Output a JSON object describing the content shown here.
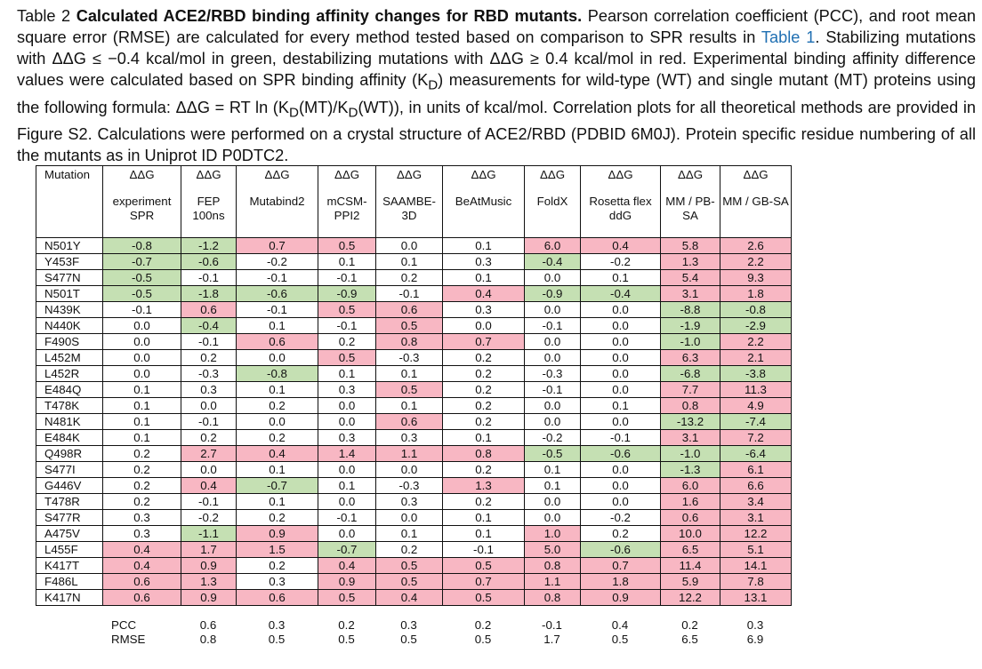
{
  "caption": {
    "label": "Table 2",
    "title": "Calculated ACE2/RBD binding affinity changes for RBD mutants.",
    "s1": "Pearson correlation coefficient (PCC), and root mean square error (RMSE) are calculated for every method tested based on comparison to SPR results in",
    "link": "Table 1",
    "s2": ". Stabilizing mutations with ΔΔG ≤ −0.4 kcal/mol in green, destabilizing mutations with ΔΔG ≥ 0.4 kcal/mol in red. Experimental binding affinity difference values were calculated based on SPR binding affinity (K",
    "sub1": "D",
    "s3": ") measurements for wild-type (WT) and single mutant (MT) proteins using the following formula: ΔΔG = RT ln (K",
    "sub2": "D",
    "s4": "(MT)/K",
    "sub3": "D",
    "s5": "(WT)), in units of kcal/mol. Correlation plots for all theoretical methods are provided in Figure S2. Calculations were performed on a crystal structure of ACE2/RBD (PDBID 6M0J). Protein specific residue numbering of all the mutants as in Uniprot ID P0DTC2."
  },
  "table": {
    "first_header": "Mutation",
    "symbol": "ΔΔG",
    "columns": [
      "experiment SPR",
      "FEP 100ns",
      "Mutabind2",
      "mCSM-PPI2",
      "SAAMBE-3D",
      "BeAtMusic",
      "FoldX",
      "Rosetta flex ddG",
      "MM / PB-SA",
      "MM / GB-SA"
    ],
    "rows": [
      {
        "m": "N501Y",
        "v": [
          "-0.8",
          "-1.2",
          "0.7",
          "0.5",
          "0.0",
          "0.1",
          "6.0",
          "0.4",
          "5.8",
          "2.6"
        ],
        "c": "ggrr--rrrr"
      },
      {
        "m": "Y453F",
        "v": [
          "-0.7",
          "-0.6",
          "-0.2",
          "0.1",
          "0.1",
          "0.3",
          "-0.4",
          "-0.2",
          "1.3",
          "2.2"
        ],
        "c": "gg----g-rr"
      },
      {
        "m": "S477N",
        "v": [
          "-0.5",
          "-0.1",
          "-0.1",
          "-0.1",
          "0.2",
          "0.1",
          "0.0",
          "0.1",
          "5.4",
          "9.3"
        ],
        "c": "g-------rr"
      },
      {
        "m": "N501T",
        "v": [
          "-0.5",
          "-1.8",
          "-0.6",
          "-0.9",
          "-0.1",
          "0.4",
          "-0.9",
          "-0.4",
          "3.1",
          "1.8"
        ],
        "c": "gggg-rggrr"
      },
      {
        "m": "N439K",
        "v": [
          "-0.1",
          "0.6",
          "-0.1",
          "0.5",
          "0.6",
          "0.3",
          "0.0",
          "0.0",
          "-8.8",
          "-0.8"
        ],
        "c": "-r-rr---gg"
      },
      {
        "m": "N440K",
        "v": [
          "0.0",
          "-0.4",
          "0.1",
          "-0.1",
          "0.5",
          "0.0",
          "-0.1",
          "0.0",
          "-1.9",
          "-2.9"
        ],
        "c": "-g--r---gg"
      },
      {
        "m": "F490S",
        "v": [
          "0.0",
          "-0.1",
          "0.6",
          "0.2",
          "0.8",
          "0.7",
          "0.0",
          "0.0",
          "-1.0",
          "2.2"
        ],
        "c": "--r-rr--gr"
      },
      {
        "m": "L452M",
        "v": [
          "0.0",
          "0.2",
          "0.0",
          "0.5",
          "-0.3",
          "0.2",
          "0.0",
          "0.0",
          "6.3",
          "2.1"
        ],
        "c": "---r----rr"
      },
      {
        "m": "L452R",
        "v": [
          "0.0",
          "-0.3",
          "-0.8",
          "0.1",
          "0.1",
          "0.2",
          "-0.3",
          "0.0",
          "-6.8",
          "-3.8"
        ],
        "c": "--g-----gg"
      },
      {
        "m": "E484Q",
        "v": [
          "0.1",
          "0.3",
          "0.1",
          "0.3",
          "0.5",
          "0.2",
          "-0.1",
          "0.0",
          "7.7",
          "11.3"
        ],
        "c": "----r---rr"
      },
      {
        "m": "T478K",
        "v": [
          "0.1",
          "0.0",
          "0.2",
          "0.0",
          "0.1",
          "0.2",
          "0.0",
          "0.1",
          "0.8",
          "4.9"
        ],
        "c": "--------rr"
      },
      {
        "m": "N481K",
        "v": [
          "0.1",
          "-0.1",
          "0.0",
          "0.0",
          "0.6",
          "0.2",
          "0.0",
          "0.0",
          "-13.2",
          "-7.4"
        ],
        "c": "----r---gg"
      },
      {
        "m": "E484K",
        "v": [
          "0.1",
          "0.2",
          "0.2",
          "0.3",
          "0.3",
          "0.1",
          "-0.2",
          "-0.1",
          "3.1",
          "7.2"
        ],
        "c": "--------rr"
      },
      {
        "m": "Q498R",
        "v": [
          "0.2",
          "2.7",
          "0.4",
          "1.4",
          "1.1",
          "0.8",
          "-0.5",
          "-0.6",
          "-1.0",
          "-6.4"
        ],
        "c": "-rrrrrgggg"
      },
      {
        "m": "S477I",
        "v": [
          "0.2",
          "0.0",
          "0.1",
          "0.0",
          "0.0",
          "0.2",
          "0.1",
          "0.0",
          "-1.3",
          "6.1"
        ],
        "c": "--------gr"
      },
      {
        "m": "G446V",
        "v": [
          "0.2",
          "0.4",
          "-0.7",
          "0.1",
          "-0.3",
          "1.3",
          "0.1",
          "0.0",
          "6.0",
          "6.6"
        ],
        "c": "-rg--r--rr"
      },
      {
        "m": "T478R",
        "v": [
          "0.2",
          "-0.1",
          "0.1",
          "0.0",
          "0.3",
          "0.2",
          "0.0",
          "0.0",
          "1.6",
          "3.4"
        ],
        "c": "--------rr"
      },
      {
        "m": "S477R",
        "v": [
          "0.3",
          "-0.2",
          "0.2",
          "-0.1",
          "0.0",
          "0.1",
          "0.0",
          "-0.2",
          "0.6",
          "3.1"
        ],
        "c": "--------rr"
      },
      {
        "m": "A475V",
        "v": [
          "0.3",
          "-1.1",
          "0.9",
          "0.0",
          "0.1",
          "0.1",
          "1.0",
          "0.2",
          "10.0",
          "12.2"
        ],
        "c": "-gr---r-rr"
      },
      {
        "m": "L455F",
        "v": [
          "0.4",
          "1.7",
          "1.5",
          "-0.7",
          "0.2",
          "-0.1",
          "5.0",
          "-0.6",
          "6.5",
          "5.1"
        ],
        "c": "rrrg--rgrr"
      },
      {
        "m": "K417T",
        "v": [
          "0.4",
          "0.9",
          "0.2",
          "0.4",
          "0.5",
          "0.5",
          "0.8",
          "0.7",
          "11.4",
          "14.1"
        ],
        "c": "rr-rrrrrrr"
      },
      {
        "m": "F486L",
        "v": [
          "0.6",
          "1.3",
          "0.3",
          "0.9",
          "0.5",
          "0.7",
          "1.1",
          "1.8",
          "5.9",
          "7.8"
        ],
        "c": "rr-rrrrrrr"
      },
      {
        "m": "K417N",
        "v": [
          "0.6",
          "0.9",
          "0.6",
          "0.5",
          "0.4",
          "0.5",
          "0.8",
          "0.9",
          "12.2",
          "13.1"
        ],
        "c": "rrrrrrrrrr"
      }
    ],
    "pcc_label": "PCC",
    "pcc": [
      "0.6",
      "0.3",
      "0.2",
      "0.3",
      "0.2",
      "-0.1",
      "0.4",
      "0.2",
      "0.3"
    ],
    "rmse_label": "RMSE",
    "rmse": [
      "0.8",
      "0.5",
      "0.5",
      "0.5",
      "0.5",
      "1.7",
      "0.5",
      "6.5",
      "6.9"
    ]
  },
  "colors": {
    "stabilizing": "#c5e0b3",
    "destabilizing": "#f8b7c3"
  }
}
